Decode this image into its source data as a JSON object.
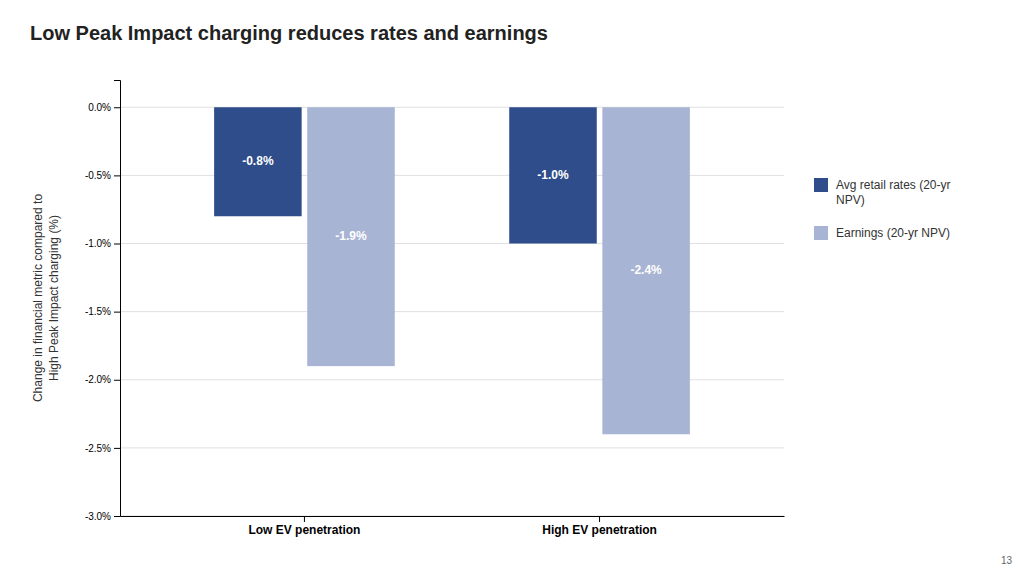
{
  "chart_data": {
    "type": "bar",
    "title": "Low Peak Impact charging reduces rates and earnings",
    "ylabel": "Change in financial metric compared to\nHigh Peak Impact charging  (%)",
    "categories": [
      "Low EV penetration",
      "High EV penetration"
    ],
    "series": [
      {
        "name": "Avg retail rates (20-yr\nNPV)",
        "color": "#2e4d8a",
        "values": [
          -0.8,
          -1.0
        ],
        "value_labels": [
          "-0.8%",
          "-1.0%"
        ]
      },
      {
        "name": "Earnings (20-yr NPV)",
        "color": "#a8b4d4",
        "values": [
          -1.9,
          -2.4
        ],
        "value_labels": [
          "-1.9%",
          "-2.4%"
        ]
      }
    ],
    "ylim": [
      -3.0,
      0.2
    ],
    "yticks": [
      {
        "value": 0.0,
        "label": "0.0%"
      },
      {
        "value": -0.5,
        "label": "-0.5%"
      },
      {
        "value": -1.0,
        "label": "-1.0%"
      },
      {
        "value": -1.5,
        "label": "-1.5%"
      },
      {
        "value": -2.0,
        "label": "-2.0%"
      },
      {
        "value": -2.5,
        "label": "-2.5%"
      },
      {
        "value": -3.0,
        "label": "-3.0%"
      }
    ],
    "grid": true,
    "data_labels": true,
    "legend": "right",
    "annotations": [
      "13"
    ]
  }
}
